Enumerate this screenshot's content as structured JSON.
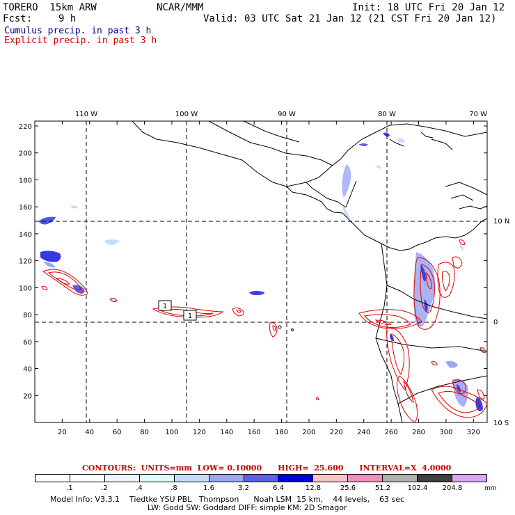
{
  "header": {
    "model_title": "TORERO  15km ARW",
    "center": "NCAR/MMM",
    "init": "Init: 18 UTC Fri 20 Jan 12",
    "fcst_label": "Fcst:",
    "fcst_value": "9 h",
    "valid": "Valid: 03 UTC Sat 21 Jan 12 (21 CST Fri 20 Jan 12)",
    "cumulus": "Cumulus precip. in past 3 h",
    "explicit": "Explicit precip. in past 3 h",
    "cumulus_color": "#000080",
    "explicit_color": "#cc0000"
  },
  "map": {
    "x_ticks": [
      "20",
      "40",
      "60",
      "80",
      "100",
      "120",
      "140",
      "160",
      "180",
      "200",
      "220",
      "240",
      "260",
      "280",
      "300",
      "320"
    ],
    "y_ticks": [
      "20",
      "40",
      "60",
      "80",
      "100",
      "120",
      "140",
      "160",
      "180",
      "200",
      "220"
    ],
    "lon_labels": [
      "110 W",
      "100 W",
      "90 W",
      "80 W",
      "70 W"
    ],
    "lat_labels": [
      "10 N",
      "0",
      "10 S"
    ],
    "contour_box_labels": [
      "1",
      "1"
    ]
  },
  "contours": {
    "text": "CONTOURS:  UNITS=mm  LOW= 0.10000      HIGH=  25.600      INTERVAL=X  4.0000"
  },
  "colorbar": {
    "colors": [
      "#ffffff",
      "#ffffff",
      "#eef6ff",
      "#e0fbfb",
      "#c8dcfa",
      "#9ea6f2",
      "#6060e8",
      "#0000e0",
      "#f5c8c8",
      "#f090c0",
      "#b0b0b0",
      "#404040",
      "#d8a8f0"
    ],
    "labels": [
      ".1",
      ".2",
      ".4",
      ".8",
      "1.6",
      "3.2",
      "6.4",
      "12.8",
      "25.6",
      "51.2",
      "102.4",
      "204.8"
    ],
    "unit": "mm"
  },
  "model_info": {
    "line1": "Model Info: V3.3.1    Tiedtke YSU PBL   Thompson      Noah LSM  15 km,    44 levels,    63 sec",
    "line2": "LW: Godd SW: Goddard DIFF: simple KM: 2D Smagor"
  }
}
